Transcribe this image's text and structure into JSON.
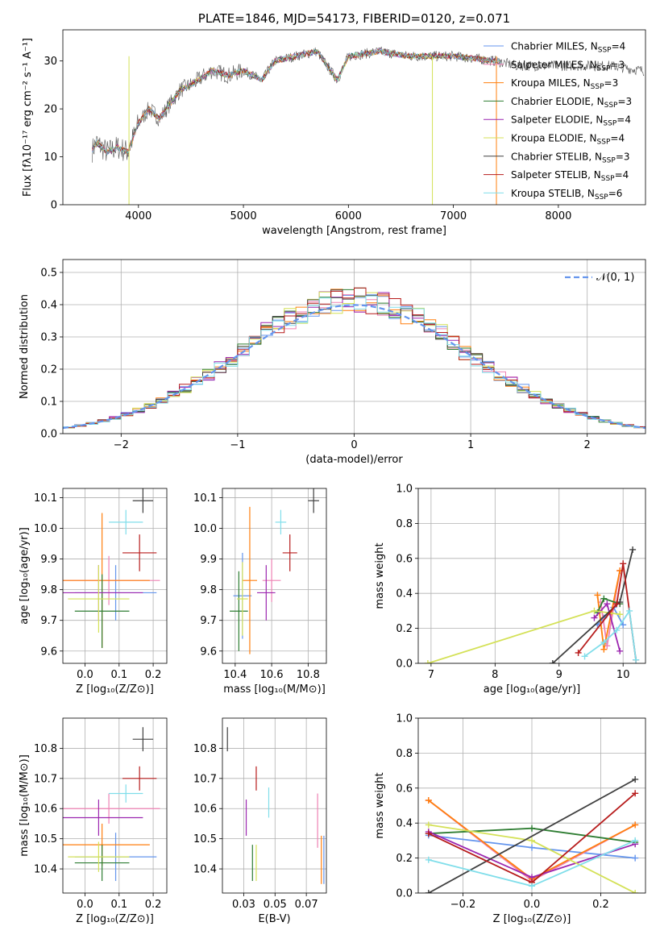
{
  "chart_data": [
    {
      "id": "spectrum",
      "type": "line",
      "title": "PLATE=1846, MJD=54173, FIBERID=0120, z=0.071",
      "xlabel": "wavelength [Angstrom, rest frame]",
      "ylabel": "Flux [fλ10⁻¹⁷ erg cm⁻² s⁻¹ A⁻¹]",
      "xlim": [
        3280,
        8830
      ],
      "ylim": [
        0,
        36.5
      ],
      "xticks": [
        4000,
        5000,
        6000,
        7000,
        8000
      ],
      "yticks": [
        0,
        10,
        20,
        30
      ],
      "legend_position": "top-right",
      "spectrum_key_points": {
        "x": [
          3550,
          3600,
          3700,
          3800,
          3900,
          4000,
          4100,
          4200,
          4300,
          4400,
          4500,
          4700,
          4860,
          5000,
          5175,
          5300,
          5500,
          5700,
          5895,
          6000,
          6300,
          6563,
          6800,
          7000,
          7400,
          7600,
          8000,
          8500,
          8800
        ],
        "y": [
          11,
          13,
          11,
          12,
          11,
          17,
          20,
          18,
          21,
          24,
          25,
          28,
          27,
          28,
          26,
          30,
          31,
          32,
          26,
          31,
          32,
          31,
          31,
          31,
          30,
          29,
          29,
          29,
          28
        ]
      },
      "series": [
        {
          "name": "Chabrier MILES, N_SSP=4",
          "color": "#6495ed"
        },
        {
          "name": "Salpeter MILES, N_SSP=3",
          "color": "#ee82b4"
        },
        {
          "name": "Kroupa MILES, N_SSP=3",
          "color": "#ff7f0e"
        },
        {
          "name": "Chabrier ELODIE, N_SSP=3",
          "color": "#2e7d32"
        },
        {
          "name": "Salpeter ELODIE, N_SSP=4",
          "color": "#9c27b0"
        },
        {
          "name": "Kroupa ELODIE, N_SSP=4",
          "color": "#d4e157"
        },
        {
          "name": "Chabrier STELIB, N_SSP=3",
          "color": "#404040"
        },
        {
          "name": "Salpeter STELIB, N_SSP=4",
          "color": "#b71c1c"
        },
        {
          "name": "Kroupa STELIB, N_SSP=6",
          "color": "#80deea"
        }
      ]
    },
    {
      "id": "residuals",
      "type": "line",
      "xlabel": "(data-model)/error",
      "ylabel": "Normed distribution",
      "xlim": [
        -2.5,
        2.5
      ],
      "ylim": [
        0,
        0.54
      ],
      "xticks": [
        -2,
        -1,
        0,
        1,
        2
      ],
      "yticks": [
        0.0,
        0.1,
        0.2,
        0.3,
        0.4,
        0.5
      ],
      "grid": true,
      "legend_position": "top-right",
      "legend": "𝒩(0, 1)",
      "bin_width": 0.1,
      "histogram_series_colors": [
        "#6495ed",
        "#ee82b4",
        "#ff7f0e",
        "#2e7d32",
        "#9c27b0",
        "#d4e157",
        "#404040",
        "#b71c1c",
        "#80deea"
      ]
    },
    {
      "id": "z-age",
      "type": "scatter",
      "xlabel": "Z [log₁₀(Z/Z⊙)]",
      "ylabel": "age  [log₁₀(age/yr)]",
      "xlim": [
        -0.065,
        0.24
      ],
      "ylim": [
        9.56,
        10.13
      ],
      "xticks": [
        0.0,
        0.1,
        0.2
      ],
      "yticks": [
        9.6,
        9.7,
        9.8,
        9.9,
        10.0,
        10.1
      ],
      "grid": true,
      "points": [
        {
          "color": "#6495ed",
          "x": 0.09,
          "y": 9.79,
          "xerr": 0.12,
          "yerr": 0.09
        },
        {
          "color": "#ee82b4",
          "x": 0.07,
          "y": 9.83,
          "xerr": 0.15,
          "yerr": 0.08
        },
        {
          "color": "#ff7f0e",
          "x": 0.05,
          "y": 9.83,
          "xerr": 0.14,
          "yerr": 0.22
        },
        {
          "color": "#2e7d32",
          "x": 0.05,
          "y": 9.73,
          "xerr": 0.08,
          "yerr": 0.12
        },
        {
          "color": "#9c27b0",
          "x": 0.04,
          "y": 9.79,
          "xerr": 0.13,
          "yerr": 0.09
        },
        {
          "color": "#d4e157",
          "x": 0.04,
          "y": 9.77,
          "xerr": 0.09,
          "yerr": 0.11
        },
        {
          "color": "#404040",
          "x": 0.17,
          "y": 10.09,
          "xerr": 0.03,
          "yerr": 0.04
        },
        {
          "color": "#b71c1c",
          "x": 0.16,
          "y": 9.92,
          "xerr": 0.05,
          "yerr": 0.06
        },
        {
          "color": "#80deea",
          "x": 0.12,
          "y": 10.02,
          "xerr": 0.05,
          "yerr": 0.04
        }
      ]
    },
    {
      "id": "mass-age",
      "type": "scatter",
      "xlabel": "mass [log₁₀(M/M⊙)]",
      "ylabel": "",
      "xlim": [
        10.33,
        10.9
      ],
      "ylim": [
        9.56,
        10.13
      ],
      "xticks": [
        10.4,
        10.6,
        10.8
      ],
      "yticks": [
        9.6,
        9.7,
        9.8,
        9.9,
        10.0,
        10.1
      ],
      "grid": true,
      "points": [
        {
          "color": "#6495ed",
          "x": 10.44,
          "y": 9.78,
          "xerr": 0.05,
          "yerr": 0.14
        },
        {
          "color": "#ee82b4",
          "x": 10.6,
          "y": 9.83,
          "xerr": 0.05,
          "yerr": 0.07
        },
        {
          "color": "#ff7f0e",
          "x": 10.48,
          "y": 9.83,
          "xerr": 0.04,
          "yerr": 0.24
        },
        {
          "color": "#2e7d32",
          "x": 10.42,
          "y": 9.73,
          "xerr": 0.05,
          "yerr": 0.13
        },
        {
          "color": "#9c27b0",
          "x": 10.57,
          "y": 9.79,
          "xerr": 0.05,
          "yerr": 0.09
        },
        {
          "color": "#d4e157",
          "x": 10.44,
          "y": 9.77,
          "xerr": 0.03,
          "yerr": 0.12
        },
        {
          "color": "#404040",
          "x": 10.83,
          "y": 10.09,
          "xerr": 0.03,
          "yerr": 0.04
        },
        {
          "color": "#b71c1c",
          "x": 10.7,
          "y": 9.92,
          "xerr": 0.04,
          "yerr": 0.06
        },
        {
          "color": "#80deea",
          "x": 10.65,
          "y": 10.02,
          "xerr": 0.03,
          "yerr": 0.04
        }
      ]
    },
    {
      "id": "age-weight",
      "type": "line",
      "xlabel": "age  [log₁₀(age/yr)]",
      "ylabel": "mass weight",
      "xlim": [
        6.8,
        10.35
      ],
      "ylim": [
        0,
        1.0
      ],
      "xticks": [
        7,
        8,
        9,
        10
      ],
      "yticks": [
        0.0,
        0.2,
        0.4,
        0.6,
        0.8,
        1.0
      ],
      "grid": true,
      "series": [
        {
          "color": "#6495ed",
          "x": [
            9.6,
            9.7,
            9.85,
            10.0
          ],
          "y": [
            0.22,
            0.26,
            0.32,
            0.22
          ]
        },
        {
          "color": "#ee82b4",
          "x": [
            9.65,
            9.75,
            9.95
          ],
          "y": [
            0.35,
            0.1,
            0.53
          ]
        },
        {
          "color": "#ff7f0e",
          "x": [
            9.6,
            9.7,
            9.95
          ],
          "y": [
            0.39,
            0.08,
            0.53
          ]
        },
        {
          "color": "#2e7d32",
          "x": [
            9.6,
            9.7,
            9.95
          ],
          "y": [
            0.29,
            0.37,
            0.34
          ]
        },
        {
          "color": "#9c27b0",
          "x": [
            9.55,
            9.75,
            9.95
          ],
          "y": [
            0.26,
            0.34,
            0.07
          ]
        },
        {
          "color": "#d4e157",
          "x": [
            6.95,
            9.55,
            9.95
          ],
          "y": [
            0.0,
            0.3,
            0.28
          ]
        },
        {
          "color": "#404040",
          "x": [
            8.9,
            9.95,
            10.15
          ],
          "y": [
            0.0,
            0.35,
            0.65
          ]
        },
        {
          "color": "#b71c1c",
          "x": [
            9.3,
            9.9,
            10.0,
            10.2
          ],
          "y": [
            0.06,
            0.34,
            0.57,
            0.02
          ]
        },
        {
          "color": "#80deea",
          "x": [
            9.4,
            9.7,
            9.9,
            10.1,
            10.2
          ],
          "y": [
            0.04,
            0.12,
            0.19,
            0.3,
            0.02
          ]
        }
      ]
    },
    {
      "id": "z-mass",
      "type": "scatter",
      "xlabel": "Z [log₁₀(Z/Z⊙)]",
      "ylabel": "mass [log₁₀(M/M⊙)]",
      "xlim": [
        -0.065,
        0.24
      ],
      "ylim": [
        10.32,
        10.9
      ],
      "xticks": [
        0.0,
        0.1,
        0.2
      ],
      "yticks": [
        10.4,
        10.5,
        10.6,
        10.7,
        10.8
      ],
      "grid": true,
      "points": [
        {
          "color": "#6495ed",
          "x": 0.09,
          "y": 10.44,
          "xerr": 0.12,
          "yerr": 0.08
        },
        {
          "color": "#ee82b4",
          "x": 0.07,
          "y": 10.6,
          "xerr": 0.15,
          "yerr": 0.05
        },
        {
          "color": "#ff7f0e",
          "x": 0.05,
          "y": 10.48,
          "xerr": 0.14,
          "yerr": 0.07
        },
        {
          "color": "#2e7d32",
          "x": 0.05,
          "y": 10.42,
          "xerr": 0.08,
          "yerr": 0.06
        },
        {
          "color": "#9c27b0",
          "x": 0.04,
          "y": 10.57,
          "xerr": 0.13,
          "yerr": 0.06
        },
        {
          "color": "#d4e157",
          "x": 0.04,
          "y": 10.44,
          "xerr": 0.09,
          "yerr": 0.05
        },
        {
          "color": "#404040",
          "x": 0.17,
          "y": 10.83,
          "xerr": 0.03,
          "yerr": 0.04
        },
        {
          "color": "#b71c1c",
          "x": 0.16,
          "y": 10.7,
          "xerr": 0.05,
          "yerr": 0.04
        },
        {
          "color": "#80deea",
          "x": 0.12,
          "y": 10.65,
          "xerr": 0.05,
          "yerr": 0.03
        }
      ]
    },
    {
      "id": "ebv-mass",
      "type": "scatter",
      "xlabel": "E(B-V)",
      "ylabel": "",
      "xlim": [
        0.008,
        0.091
      ],
      "ylim": [
        10.32,
        10.9
      ],
      "xticks": [
        0.025,
        0.05,
        0.075
      ],
      "yticks": [
        10.4,
        10.5,
        10.6,
        10.7,
        10.8
      ],
      "grid": true,
      "points": [
        {
          "color": "#6495ed",
          "x": 0.089,
          "y": 10.43,
          "yerr": 0.08
        },
        {
          "color": "#ee82b4",
          "x": 0.084,
          "y": 10.56,
          "yerr": 0.09
        },
        {
          "color": "#ff7f0e",
          "x": 0.087,
          "y": 10.43,
          "yerr": 0.08
        },
        {
          "color": "#2e7d32",
          "x": 0.032,
          "y": 10.42,
          "yerr": 0.06
        },
        {
          "color": "#9c27b0",
          "x": 0.027,
          "y": 10.57,
          "yerr": 0.06
        },
        {
          "color": "#d4e157",
          "x": 0.035,
          "y": 10.42,
          "yerr": 0.06
        },
        {
          "color": "#404040",
          "x": 0.012,
          "y": 10.83,
          "yerr": 0.04
        },
        {
          "color": "#b71c1c",
          "x": 0.035,
          "y": 10.7,
          "yerr": 0.04
        },
        {
          "color": "#80deea",
          "x": 0.045,
          "y": 10.62,
          "yerr": 0.05
        }
      ]
    },
    {
      "id": "z-weight",
      "type": "line",
      "xlabel": "Z [log₁₀(Z/Z⊙)]",
      "ylabel": "mass weight",
      "xlim": [
        -0.33,
        0.33
      ],
      "ylim": [
        0,
        1.0
      ],
      "xticks": [
        -0.2,
        0.0,
        0.2
      ],
      "yticks": [
        0.0,
        0.2,
        0.4,
        0.6,
        0.8,
        1.0
      ],
      "grid": true,
      "series": [
        {
          "color": "#6495ed",
          "x": [
            -0.3,
            0.0,
            0.3
          ],
          "y": [
            0.33,
            0.26,
            0.2
          ]
        },
        {
          "color": "#ee82b4",
          "x": [
            -0.3,
            0.0,
            0.3
          ],
          "y": [
            0.53,
            0.07,
            0.39
          ]
        },
        {
          "color": "#ff7f0e",
          "x": [
            -0.3,
            0.0,
            0.3
          ],
          "y": [
            0.53,
            0.08,
            0.39
          ]
        },
        {
          "color": "#2e7d32",
          "x": [
            -0.3,
            0.0,
            0.3
          ],
          "y": [
            0.34,
            0.37,
            0.29
          ]
        },
        {
          "color": "#9c27b0",
          "x": [
            -0.3,
            0.0,
            0.3
          ],
          "y": [
            0.35,
            0.09,
            0.28
          ]
        },
        {
          "color": "#d4e157",
          "x": [
            -0.3,
            0.0,
            0.3
          ],
          "y": [
            0.39,
            0.3,
            0.0
          ]
        },
        {
          "color": "#404040",
          "x": [
            -0.3,
            0.3
          ],
          "y": [
            0.0,
            0.65
          ]
        },
        {
          "color": "#b71c1c",
          "x": [
            -0.3,
            0.0,
            0.3
          ],
          "y": [
            0.34,
            0.06,
            0.57
          ]
        },
        {
          "color": "#80deea",
          "x": [
            -0.3,
            0.0,
            0.3
          ],
          "y": [
            0.19,
            0.04,
            0.3
          ]
        }
      ]
    }
  ]
}
